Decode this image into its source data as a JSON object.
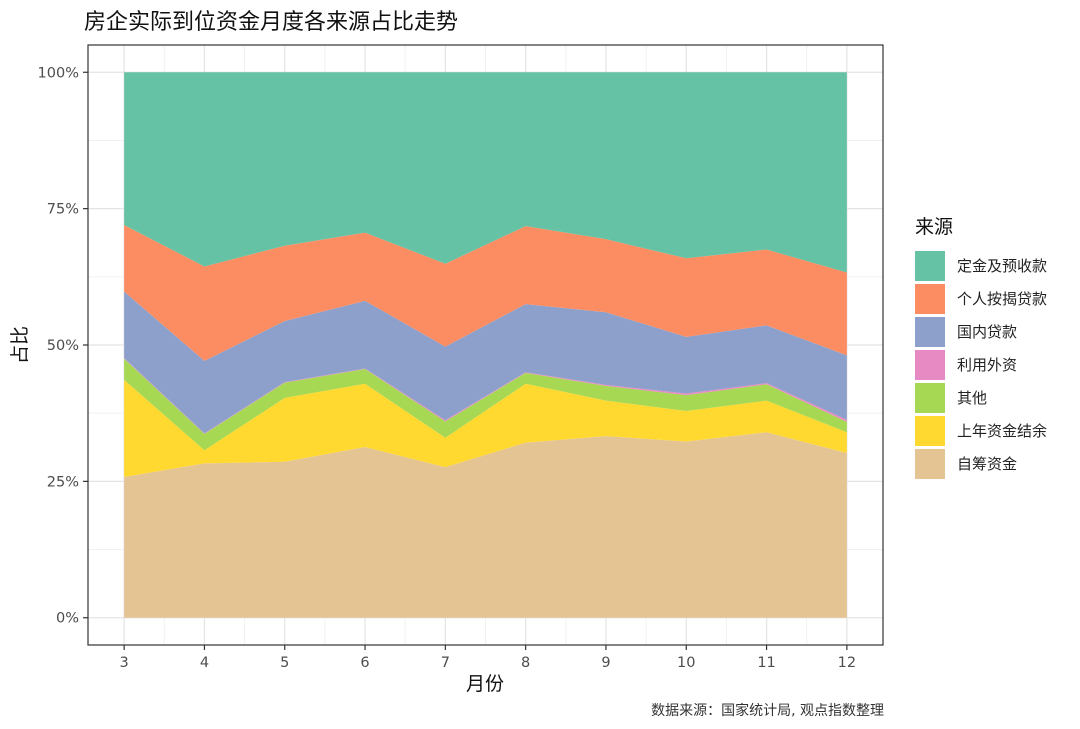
{
  "title": "房企实际到位资金月度各来源占比走势",
  "caption": "数据来源：国家统计局, 观点指数整理",
  "chart_data": {
    "type": "area",
    "stacked": "percent",
    "title": "房企实际到位资金月度各来源占比走势",
    "xlabel": "月份",
    "ylabel": "占比",
    "x": [
      3,
      4,
      5,
      6,
      7,
      8,
      9,
      10,
      11,
      12
    ],
    "ylim": [
      0,
      100
    ],
    "yticks": [
      0,
      25,
      50,
      75,
      100
    ],
    "ytick_labels": [
      "0%",
      "25%",
      "50%",
      "75%",
      "100%"
    ],
    "grid": true,
    "legend_title": "来源",
    "legend_position": "right",
    "series": [
      {
        "name": "自筹资金",
        "color": "#E5C494",
        "values": [
          25.8,
          28.3,
          28.6,
          31.3,
          27.6,
          32.1,
          33.3,
          32.3,
          34.0,
          30.2
        ]
      },
      {
        "name": "上年资金结余",
        "color": "#FFD92F",
        "values": [
          17.8,
          2.4,
          11.7,
          11.6,
          5.4,
          10.8,
          6.5,
          5.6,
          5.8,
          3.8
        ]
      },
      {
        "name": "其他",
        "color": "#A6D854",
        "values": [
          3.9,
          3.0,
          2.8,
          2.7,
          3.0,
          2.0,
          2.7,
          2.9,
          3.0,
          1.9
        ]
      },
      {
        "name": "利用外资",
        "color": "#E78AC3",
        "values": [
          0.1,
          0.1,
          0.1,
          0.1,
          0.2,
          0.1,
          0.2,
          0.3,
          0.2,
          0.4
        ]
      },
      {
        "name": "国内贷款",
        "color": "#8DA0CB",
        "values": [
          12.2,
          13.3,
          11.2,
          12.4,
          13.5,
          12.5,
          13.3,
          10.4,
          10.6,
          11.8
        ]
      },
      {
        "name": "个人按揭贷款",
        "color": "#FC8D62",
        "values": [
          12.2,
          17.3,
          13.8,
          12.5,
          15.2,
          14.3,
          13.4,
          14.4,
          13.9,
          15.2
        ]
      },
      {
        "name": "定金及预收款",
        "color": "#66C2A5",
        "values": [
          28.0,
          35.6,
          31.8,
          29.4,
          35.1,
          28.2,
          30.6,
          34.1,
          32.5,
          36.7
        ]
      }
    ],
    "legend_order": [
      "定金及预收款",
      "个人按揭贷款",
      "国内贷款",
      "利用外资",
      "其他",
      "上年资金结余",
      "自筹资金"
    ]
  }
}
